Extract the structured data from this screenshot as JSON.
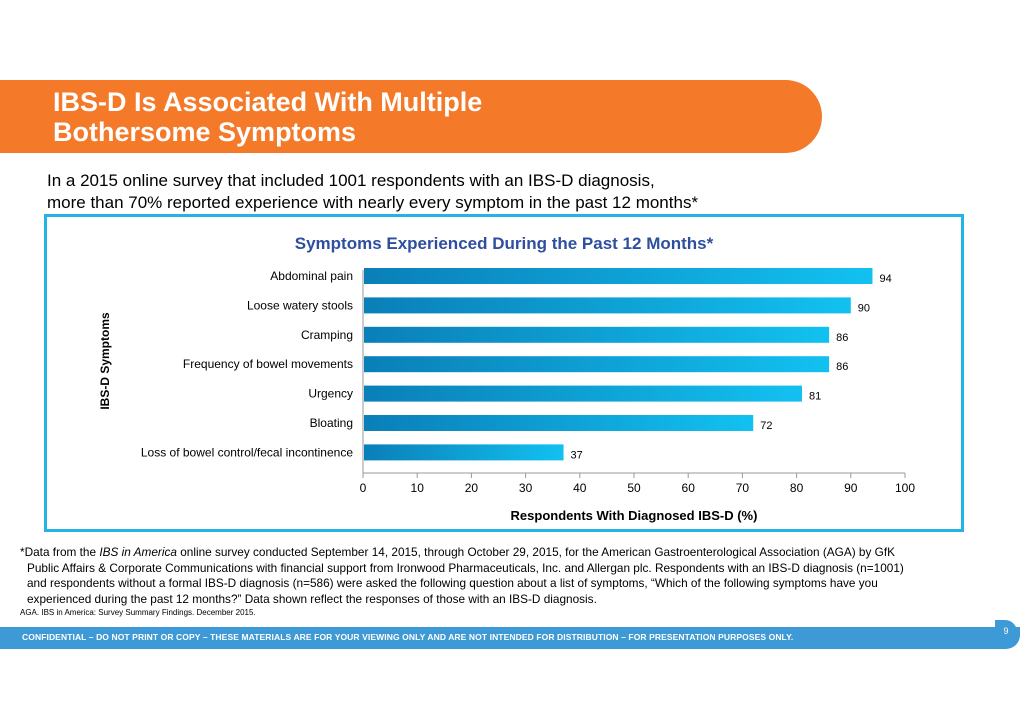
{
  "slide": {
    "title_line1": "IBS-D Is Associated With Multiple",
    "title_line2": "Bothersome Symptoms",
    "subtitle_line1": "In a 2015 online survey that included 1001 respondents with an IBS-D diagnosis,",
    "subtitle_line2": "more than 70% reported experience with nearly every symptom in the past 12 months*",
    "footnote": {
      "prefix": "*Data from the ",
      "italic": "IBS in America",
      "rest1": " online survey conducted September 14, 2015, through October 29, 2015, for the American Gastroenterological Association (AGA) by GfK",
      "line2": "Public Affairs & Corporate Communications with financial support from Ironwood Pharmaceuticals, Inc. and Allergan plc. Respondents with an IBS-D diagnosis (n=1001)",
      "line3": "and respondents without a formal IBS-D diagnosis (n=586) were asked the following question about a list of symptoms, “Which of the following symptoms have you",
      "line4": "experienced during the past 12 months?” Data shown reflect the responses of those with an IBS-D diagnosis."
    },
    "source": "AGA. IBS in America: Survey Summary Findings. December 2015.",
    "footer": "CONFIDENTIAL – DO NOT PRINT OR COPY – THESE MATERIALS ARE FOR YOUR VIEWING ONLY AND ARE NOT INTENDED FOR DISTRIBUTION – FOR PRESENTATION PURPOSES ONLY.",
    "page_number": "9",
    "colors": {
      "orange": "#f47a2a",
      "cyan_border": "#25b3e6",
      "footer_blue": "#3e9ad6",
      "title_blue": "#2e4f9e",
      "bar_dark": "#0a7fb8",
      "bar_light": "#12c1f0"
    }
  },
  "chart_data": {
    "type": "bar",
    "orientation": "horizontal",
    "title": "Symptoms Experienced During the Past 12 Months*",
    "xlabel": "Respondents With Diagnosed IBS-D (%)",
    "ylabel": "IBS-D Symptoms",
    "categories": [
      "Abdominal pain",
      "Loose watery stools",
      "Cramping",
      "Frequency of bowel movements",
      "Urgency",
      "Bloating",
      "Loss of bowel control/fecal incontinence"
    ],
    "values": [
      94,
      90,
      86,
      86,
      81,
      72,
      37
    ],
    "xlim": [
      0,
      100
    ],
    "xticks": [
      0,
      10,
      20,
      30,
      40,
      50,
      60,
      70,
      80,
      90,
      100
    ],
    "grid": false
  }
}
